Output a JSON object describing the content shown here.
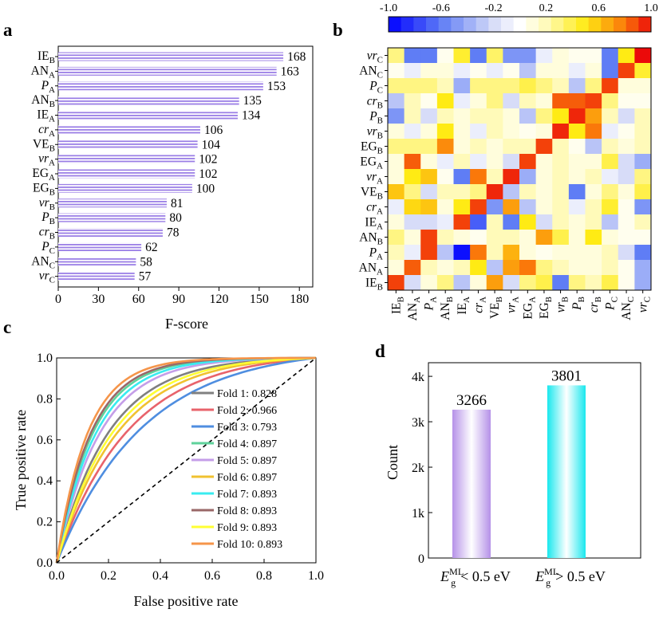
{
  "panels": {
    "a": {
      "label": "a",
      "chart_data": {
        "type": "bar",
        "orientation": "horizontal",
        "categories": [
          "IE_B",
          "AN_A",
          "P_A",
          "AN_B",
          "IE_A",
          "cr_A",
          "VE_B",
          "vr_A",
          "EG_A",
          "EG_B",
          "vr_B",
          "P_B",
          "cr_B",
          "P_C",
          "AN_C",
          "vr_C"
        ],
        "category_labels": [
          {
            "main": "IE",
            "sub": "B",
            "italic": false
          },
          {
            "main": "AN",
            "sub": "A",
            "italic": false
          },
          {
            "main": "P",
            "sub": "A",
            "italic": true
          },
          {
            "main": "AN",
            "sub": "B",
            "italic": false
          },
          {
            "main": "IE",
            "sub": "A",
            "italic": false
          },
          {
            "main": "cr",
            "sub": "A",
            "italic": true
          },
          {
            "main": "VE",
            "sub": "B",
            "italic": false
          },
          {
            "main": "vr",
            "sub": "A",
            "italic": true
          },
          {
            "main": "EG",
            "sub": "A",
            "italic": false
          },
          {
            "main": "EG",
            "sub": "B",
            "italic": false
          },
          {
            "main": "vr",
            "sub": "B",
            "italic": true
          },
          {
            "main": "P",
            "sub": "B",
            "italic": true
          },
          {
            "main": "cr",
            "sub": "B",
            "italic": true
          },
          {
            "main": "P",
            "sub": "C",
            "italic": true
          },
          {
            "main": "AN",
            "sub": "C",
            "italic": false
          },
          {
            "main": "vr",
            "sub": "C",
            "italic": true
          }
        ],
        "values": [
          168,
          163,
          153,
          135,
          134,
          106,
          104,
          102,
          102,
          100,
          81,
          80,
          78,
          62,
          58,
          57
        ],
        "xlabel": "F-score",
        "xlim": [
          0,
          190
        ],
        "xticks": [
          0,
          30,
          60,
          90,
          120,
          150,
          180
        ],
        "bar_color": "#9b7fe6"
      }
    },
    "b": {
      "label": "b",
      "chart_data": {
        "type": "heatmap",
        "colorbar_ticks": [
          "-1.0",
          "-0.6",
          "-0.2",
          "0.2",
          "0.6",
          "1.0"
        ],
        "colorbar_range": [
          -1,
          1
        ],
        "rows": [
          "vr_C",
          "AN_C",
          "P_C",
          "cr_B",
          "P_B",
          "vr_B",
          "EG_B",
          "EG_A",
          "vr_A",
          "VE_B",
          "cr_A",
          "IE_A",
          "AN_B",
          "P_A",
          "AN_A",
          "IE_B"
        ],
        "row_labels": [
          {
            "main": "vr",
            "sub": "C",
            "italic": true
          },
          {
            "main": "AN",
            "sub": "C",
            "italic": false
          },
          {
            "main": "P",
            "sub": "C",
            "italic": true
          },
          {
            "main": "cr",
            "sub": "B",
            "italic": true
          },
          {
            "main": "P",
            "sub": "B",
            "italic": true
          },
          {
            "main": "vr",
            "sub": "B",
            "italic": true
          },
          {
            "main": "EG",
            "sub": "B",
            "italic": false
          },
          {
            "main": "EG",
            "sub": "A",
            "italic": false
          },
          {
            "main": "vr",
            "sub": "A",
            "italic": true
          },
          {
            "main": "VE",
            "sub": "B",
            "italic": false
          },
          {
            "main": "cr",
            "sub": "A",
            "italic": true
          },
          {
            "main": "IE",
            "sub": "A",
            "italic": false
          },
          {
            "main": "AN",
            "sub": "B",
            "italic": false
          },
          {
            "main": "P",
            "sub": "A",
            "italic": true
          },
          {
            "main": "AN",
            "sub": "A",
            "italic": false
          },
          {
            "main": "IE",
            "sub": "B",
            "italic": false
          }
        ],
        "cols": [
          "IE_B",
          "AN_A",
          "P_A",
          "AN_B",
          "IE_A",
          "cr_A",
          "VE_B",
          "vr_A",
          "EG_A",
          "EG_B",
          "vr_B",
          "P_B",
          "cr_B",
          "P_C",
          "AN_C",
          "vr_C"
        ],
        "col_labels": [
          {
            "main": "IE",
            "sub": "B",
            "italic": false
          },
          {
            "main": "AN",
            "sub": "A",
            "italic": false
          },
          {
            "main": "P",
            "sub": "A",
            "italic": true
          },
          {
            "main": "AN",
            "sub": "B",
            "italic": false
          },
          {
            "main": "IE",
            "sub": "A",
            "italic": false
          },
          {
            "main": "cr",
            "sub": "A",
            "italic": true
          },
          {
            "main": "VE",
            "sub": "B",
            "italic": false
          },
          {
            "main": "vr",
            "sub": "A",
            "italic": true
          },
          {
            "main": "EG",
            "sub": "A",
            "italic": false
          },
          {
            "main": "EG",
            "sub": "B",
            "italic": false
          },
          {
            "main": "vr",
            "sub": "B",
            "italic": true
          },
          {
            "main": "P",
            "sub": "B",
            "italic": true
          },
          {
            "main": "cr",
            "sub": "B",
            "italic": true
          },
          {
            "main": "P",
            "sub": "C",
            "italic": true
          },
          {
            "main": "AN",
            "sub": "C",
            "italic": false
          },
          {
            "main": "vr",
            "sub": "C",
            "italic": true
          }
        ],
        "values": [
          [
            0.3,
            -0.6,
            -0.6,
            0.05,
            0.45,
            -0.6,
            0.35,
            -0.5,
            -0.5,
            -0.1,
            0.1,
            0.05,
            0.05,
            -0.6,
            0.5,
            1.0
          ],
          [
            0.05,
            -0.1,
            0.1,
            0.1,
            -0.1,
            0.05,
            -0.1,
            0.05,
            -0.3,
            0.1,
            0.1,
            -0.1,
            0.1,
            -0.6,
            0.9,
            0.45
          ],
          [
            0.3,
            0.3,
            0.3,
            0.2,
            -0.4,
            0.3,
            0.3,
            0.3,
            0.4,
            0.3,
            0.2,
            -0.3,
            0.3,
            0.9,
            0.1,
            0.1
          ],
          [
            -0.3,
            0.2,
            0.05,
            0.5,
            -0.1,
            0.1,
            0.3,
            -0.2,
            0.2,
            0.1,
            0.85,
            0.85,
            0.9,
            0.3,
            0.05,
            0.05
          ],
          [
            -0.5,
            0.2,
            -0.2,
            0.2,
            0.1,
            0.2,
            0.2,
            0.1,
            -0.3,
            0.3,
            0.5,
            0.95,
            0.7,
            0.2,
            -0.2,
            0.2
          ],
          [
            0.1,
            -0.1,
            0.1,
            0.5,
            0.1,
            -0.1,
            0.2,
            0.1,
            0.05,
            0.1,
            0.95,
            0.5,
            0.8,
            -0.1,
            0.05,
            0.2
          ],
          [
            0.3,
            0.3,
            0.3,
            0.75,
            0.1,
            0.2,
            0.1,
            0.2,
            0.2,
            0.9,
            0.2,
            0.05,
            -0.3,
            0.2,
            0.1,
            0.2
          ],
          [
            0.1,
            0.85,
            0.1,
            -0.1,
            0.2,
            -0.1,
            0.1,
            -0.2,
            0.9,
            0.1,
            0.2,
            0.1,
            0.1,
            0.4,
            -0.2,
            -0.4
          ],
          [
            0.1,
            0.5,
            0.6,
            0.05,
            -0.6,
            0.8,
            0.2,
            0.95,
            -0.4,
            0.1,
            0.2,
            0.1,
            0.2,
            -0.1,
            -0.2,
            0.3
          ],
          [
            0.6,
            0.3,
            -0.2,
            0.2,
            0.2,
            0.3,
            0.95,
            -0.3,
            0.2,
            0.1,
            0.2,
            -0.6,
            0.1,
            0.3,
            0.1,
            0.4
          ],
          [
            -0.1,
            0.55,
            0.6,
            0.1,
            0.5,
            0.9,
            -0.5,
            0.7,
            -0.3,
            0.1,
            0.2,
            -0.1,
            0.2,
            0.45,
            0.05,
            -0.5
          ],
          [
            0.1,
            -0.2,
            -0.2,
            -0.1,
            0.9,
            -0.7,
            0.2,
            -0.6,
            0.5,
            -0.2,
            0.2,
            0.1,
            0.2,
            -0.3,
            0.05,
            0.2
          ],
          [
            0.3,
            0.1,
            0.9,
            0.2,
            0.1,
            0.05,
            0.2,
            0.2,
            0.1,
            0.7,
            0.4,
            0.1,
            0.5,
            0.1,
            0.05,
            0.05
          ],
          [
            0.2,
            -0.1,
            0.9,
            -0.3,
            -0.95,
            0.8,
            0.2,
            0.65,
            0.1,
            0.05,
            0.1,
            0.1,
            0.1,
            0.2,
            -0.2,
            -0.6
          ],
          [
            0.1,
            0.85,
            0.2,
            0.1,
            0.2,
            0.5,
            -0.3,
            0.7,
            0.8,
            0.3,
            0.2,
            0.1,
            0.1,
            0.2,
            0.05,
            -0.4
          ],
          [
            0.9,
            -0.2,
            0.1,
            0.3,
            -0.3,
            0.1,
            0.7,
            -0.2,
            0.3,
            0.4,
            -0.6,
            0.3,
            0.2,
            0.4,
            0.05,
            -0.4
          ]
        ]
      }
    },
    "c": {
      "label": "c",
      "chart_data": {
        "type": "line",
        "xlabel": "False positive rate",
        "ylabel": "True positive rate",
        "xlim": [
          0,
          1
        ],
        "ylim": [
          0,
          1
        ],
        "xticks": [
          "0.0",
          "0.2",
          "0.4",
          "0.6",
          "0.8",
          "1.0"
        ],
        "yticks": [
          "0.0",
          "0.2",
          "0.4",
          "0.6",
          "0.8",
          "1.0"
        ],
        "diagonal": true,
        "series": [
          {
            "name": "Fold 1: 0.828",
            "color": "#808080",
            "k": 5.0
          },
          {
            "name": "Fold 2: 0.966",
            "color": "#e8636b",
            "k": 3.6
          },
          {
            "name": "Fold 3: 0.793",
            "color": "#4f8ee0",
            "k": 3.0
          },
          {
            "name": "Fold 4: 0.897",
            "color": "#5fd29b",
            "k": 7.2
          },
          {
            "name": "Fold 5: 0.897",
            "color": "#c49ee8",
            "k": 6.0
          },
          {
            "name": "Fold 6: 0.897",
            "color": "#f0c230",
            "k": 4.2
          },
          {
            "name": "Fold 7: 0.893",
            "color": "#39ecf0",
            "k": 6.6
          },
          {
            "name": "Fold 8: 0.893",
            "color": "#9a6868",
            "k": 7.6
          },
          {
            "name": "Fold 9: 0.893",
            "color": "#ffff33",
            "k": 4.6
          },
          {
            "name": "Fold 10: 0.893",
            "color": "#f5954a",
            "k": 8.4
          }
        ]
      }
    },
    "d": {
      "label": "d",
      "chart_data": {
        "type": "bar",
        "categories": [
          "Eg_ML < 0.5 eV",
          "Eg_ML > 0.5 eV"
        ],
        "category_labels": [
          {
            "main": "E",
            "sup": "ML",
            "sub": "g",
            "rest": "< 0.5 eV"
          },
          {
            "main": "E",
            "sup": "ML",
            "sub": "g",
            "rest": "> 0.5 eV"
          }
        ],
        "values": [
          3266,
          3801
        ],
        "value_labels": [
          "3266",
          "3801"
        ],
        "ylabel": "Count",
        "ylim": [
          0,
          4300
        ],
        "yticks": [
          {
            "v": 0,
            "t": "0"
          },
          {
            "v": 1000,
            "t": "1k"
          },
          {
            "v": 2000,
            "t": "2k"
          },
          {
            "v": 3000,
            "t": "3k"
          },
          {
            "v": 4000,
            "t": "4k"
          }
        ],
        "colors": [
          "#c4a8ea",
          "#39f0f0"
        ]
      }
    }
  }
}
